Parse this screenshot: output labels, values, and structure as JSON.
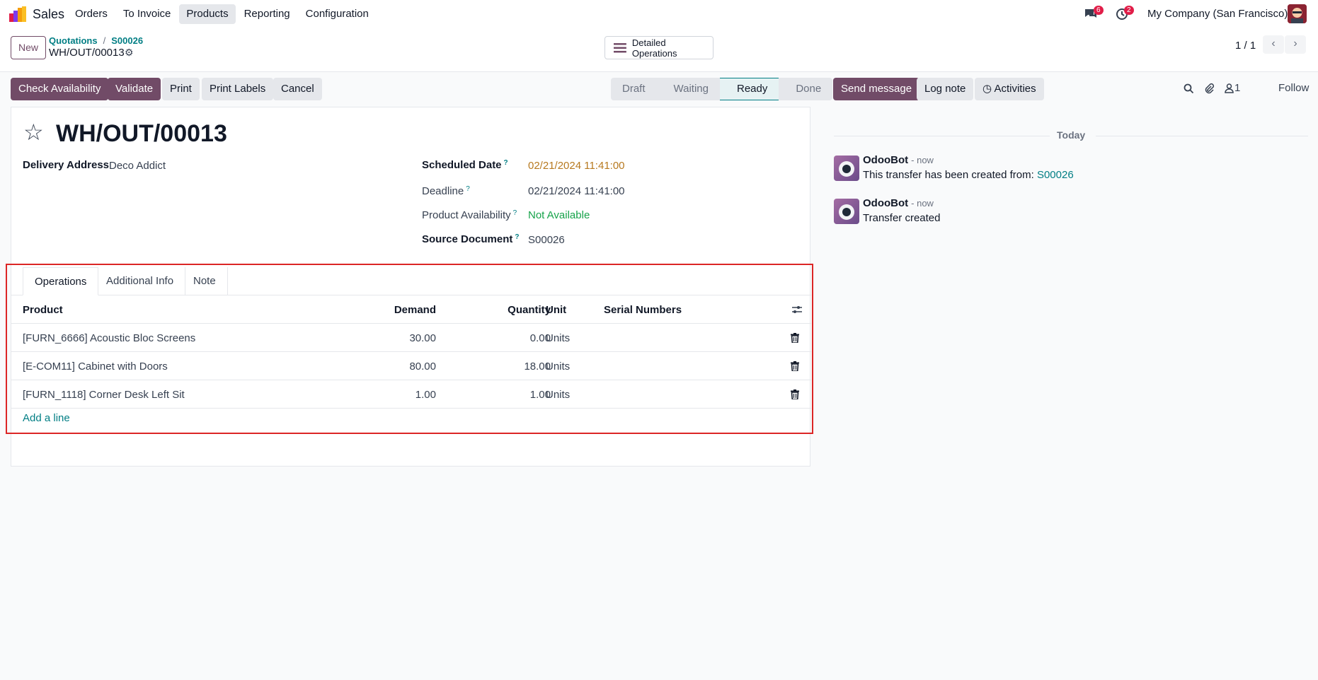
{
  "app": {
    "name": "Sales"
  },
  "menu": [
    {
      "label": "Orders"
    },
    {
      "label": "To Invoice"
    },
    {
      "label": "Products"
    },
    {
      "label": "Reporting"
    },
    {
      "label": "Configuration"
    }
  ],
  "systray": {
    "messages_count": "6",
    "activities_count": "2",
    "company": "My Company (San Francisco)"
  },
  "control": {
    "new_label": "New",
    "breadcrumbs": [
      "Quotations",
      "S00026"
    ],
    "record": "WH/OUT/00013",
    "detailed_operations": "Detailed Operations",
    "pager": "1 / 1"
  },
  "actions": [
    "Check Availability",
    "Validate",
    "Print",
    "Print Labels",
    "Cancel"
  ],
  "statusbar": [
    "Draft",
    "Waiting",
    "Ready",
    "Done"
  ],
  "form": {
    "title": "WH/OUT/00013",
    "delivery_address_label": "Delivery Address",
    "delivery_address": "Deco Addict",
    "scheduled_date_label": "Scheduled Date",
    "scheduled_date": "02/21/2024 11:41:00",
    "deadline_label": "Deadline",
    "deadline": "02/21/2024 11:41:00",
    "availability_label": "Product Availability",
    "availability": "Not Available",
    "source_label": "Source Document",
    "source": "S00026",
    "qmark": "?"
  },
  "tabs": [
    "Operations",
    "Additional Info",
    "Note"
  ],
  "table": {
    "headers": [
      "Product",
      "Demand",
      "Quantity",
      "Unit",
      "Serial Numbers"
    ],
    "rows": [
      {
        "product": "[FURN_6666] Acoustic Bloc Screens",
        "demand": "30.00",
        "quantity": "0.00",
        "unit": "Units"
      },
      {
        "product": "[E-COM11] Cabinet with Doors",
        "demand": "80.00",
        "quantity": "18.00",
        "unit": "Units"
      },
      {
        "product": "[FURN_1118] Corner Desk Left Sit",
        "demand": "1.00",
        "quantity": "1.00",
        "unit": "Units"
      }
    ],
    "add_line": "Add a line"
  },
  "chatter": {
    "send_message": "Send message",
    "log_note": "Log note",
    "activities": "Activities",
    "followers_count": "1",
    "follow": "Follow",
    "today": "Today",
    "messages": [
      {
        "author": "OdooBot",
        "when": "- now",
        "text": "This transfer has been created from:",
        "link": "S00026"
      },
      {
        "author": "OdooBot",
        "when": "- now",
        "text": "Transfer created"
      }
    ]
  },
  "colors": {
    "primary": "#714b67",
    "link": "#017e84",
    "warning_date": "#b7791f",
    "not_available": "#16a34a",
    "highlight": "#dc2626"
  }
}
